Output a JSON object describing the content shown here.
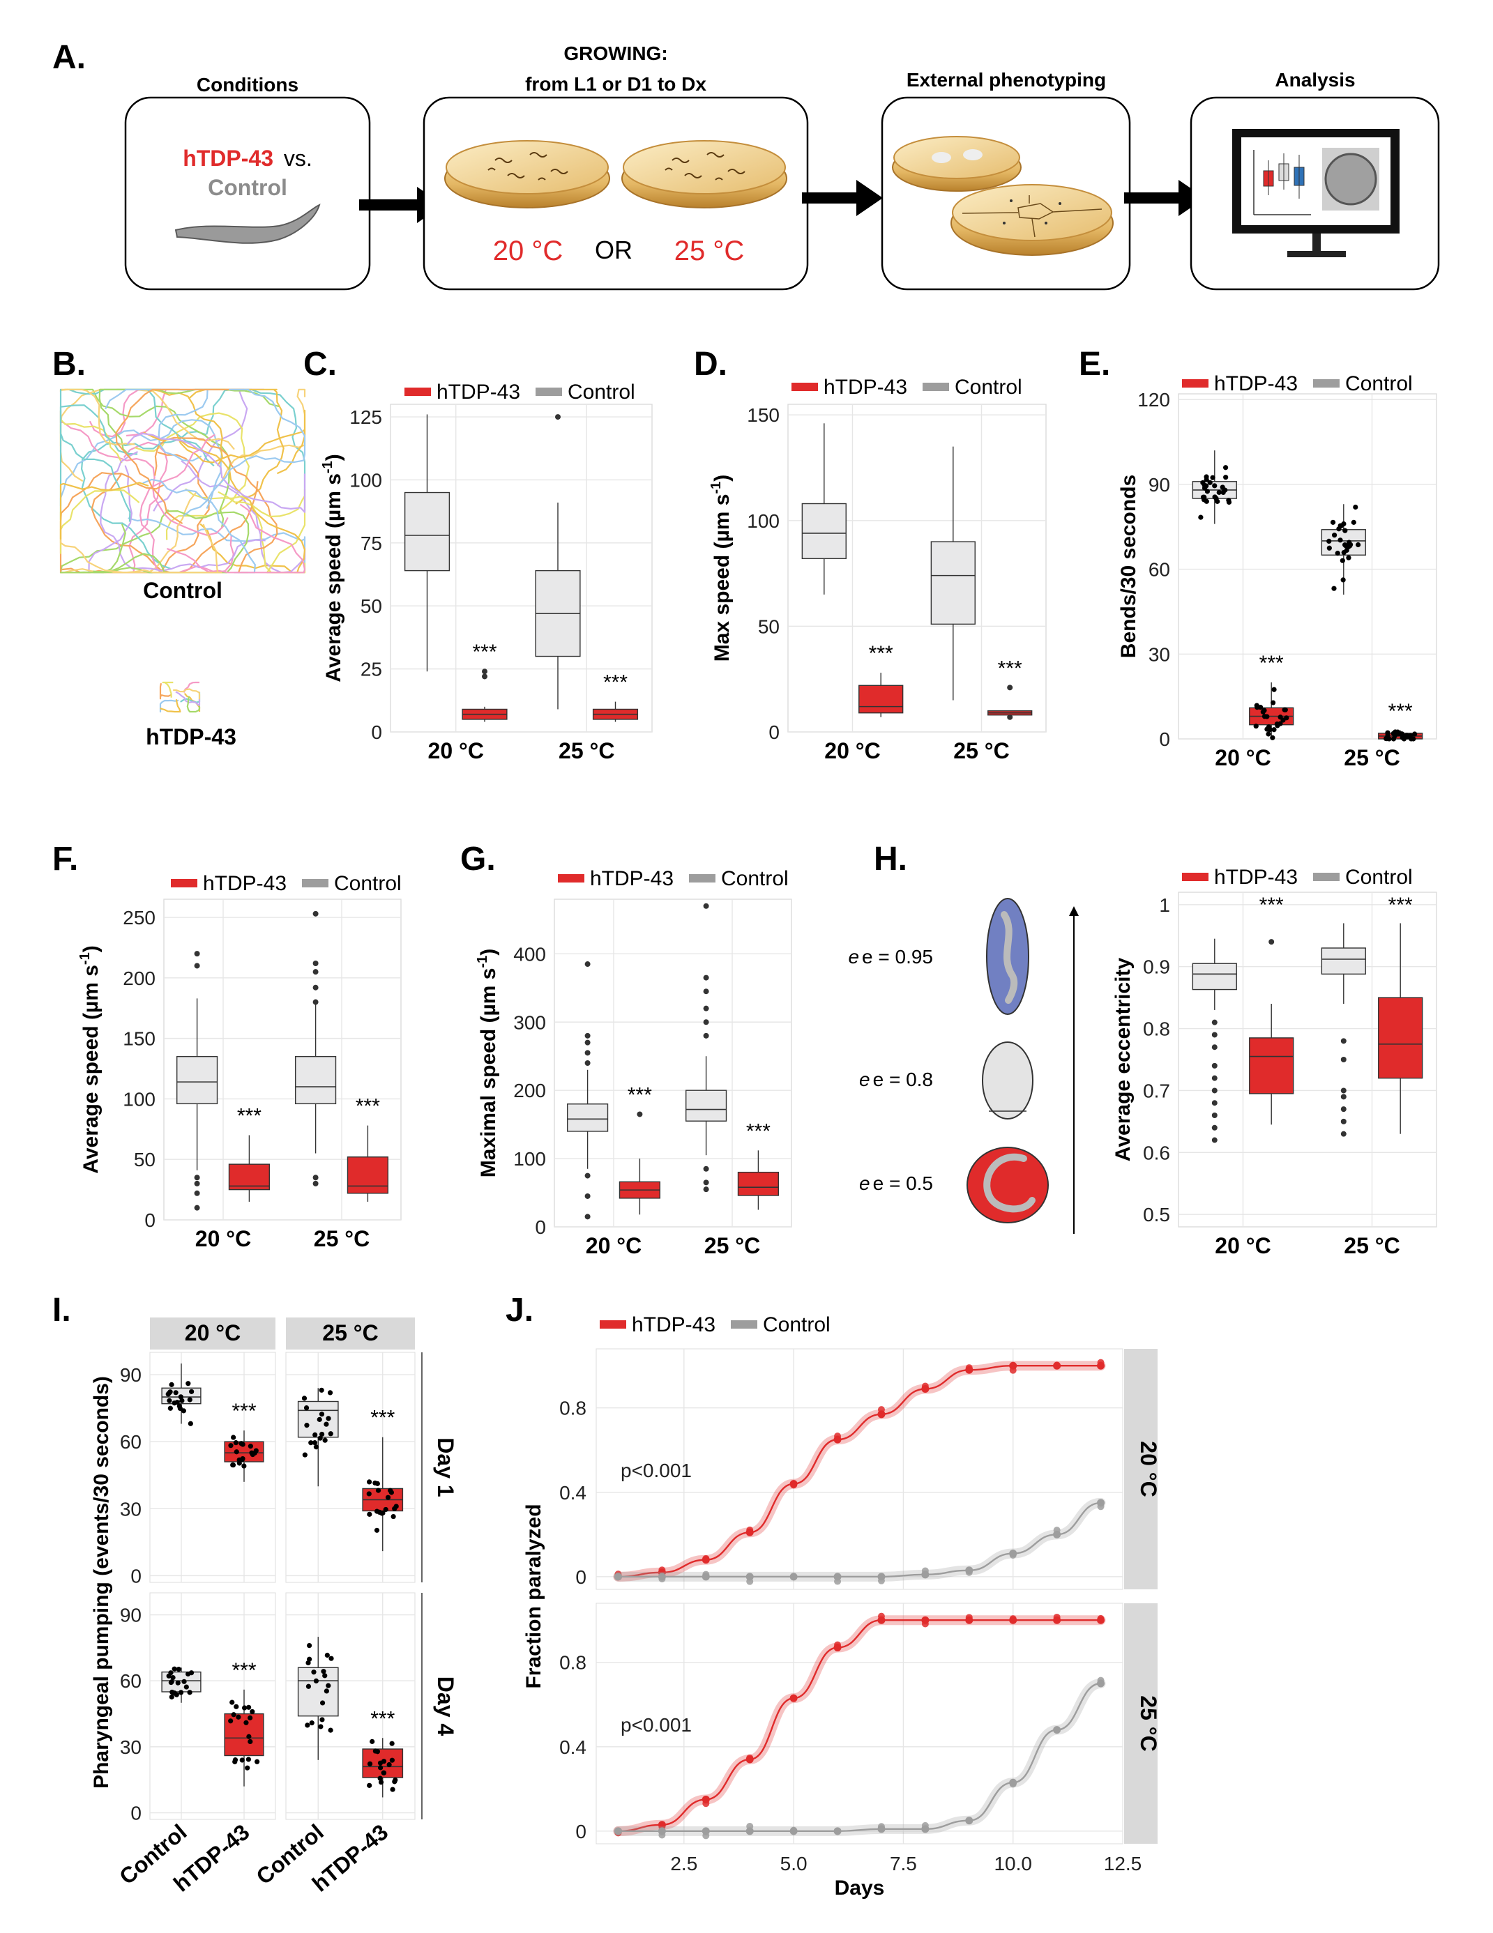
{
  "panels": {
    "A": {
      "label": "A.",
      "boxes": [
        {
          "title": "Conditions"
        },
        {
          "title": "GROWING:",
          "subtitle": "from L1 or D1 to Dx"
        },
        {
          "title": "External phenotyping"
        },
        {
          "title": "Analysis"
        }
      ],
      "strain_red": "hTDP-43",
      "vs_text": "vs.",
      "strain_grey": "Control",
      "temp1": "20 °C",
      "or_text": "OR",
      "temp2": "25 °C"
    },
    "B": {
      "label": "B.",
      "control_label": "Control",
      "htdp_label": "hTDP-43"
    },
    "C": {
      "label": "C."
    },
    "D": {
      "label": "D."
    },
    "E": {
      "label": "E."
    },
    "F": {
      "label": "F."
    },
    "G": {
      "label": "G."
    },
    "H": {
      "label": "H.",
      "ellipse_labels": [
        "e = 0.95",
        "e = 0.8",
        "e = 0.5"
      ],
      "ellipse_e": [
        0.95,
        0.8,
        0.5
      ]
    },
    "I": {
      "label": "I."
    },
    "J": {
      "label": "J."
    }
  },
  "legend": {
    "htdp": "hTDP-43",
    "control": "Control"
  },
  "colors": {
    "htdp": "#e02b2b",
    "control": "#9d9d9d",
    "control_box": "#e8e8e9",
    "ellipse_blue": "#7180c2",
    "strip": "#d9d9d9"
  },
  "chart_data": [
    {
      "id": "C",
      "type": "box",
      "ylabel": "Average speed (µm s⁻¹)",
      "categories": [
        "20 °C",
        "25 °C"
      ],
      "ylim": [
        0,
        130
      ],
      "yticks": [
        0,
        25,
        50,
        75,
        100,
        125
      ],
      "series": [
        {
          "name": "Control",
          "boxes": [
            {
              "q1": 64,
              "median": 78,
              "q3": 95,
              "lo": 24,
              "hi": 126,
              "out": []
            },
            {
              "q1": 30,
              "median": 47,
              "q3": 64,
              "lo": 9,
              "hi": 91,
              "out": [
                125
              ]
            }
          ]
        },
        {
          "name": "hTDP-43",
          "boxes": [
            {
              "q1": 5,
              "median": 7,
              "q3": 9,
              "lo": 4,
              "hi": 10,
              "out": [
                22,
                24
              ]
            },
            {
              "q1": 5,
              "median": 7,
              "q3": 9,
              "lo": 4,
              "hi": 12,
              "out": []
            }
          ]
        }
      ],
      "annotations": [
        "***",
        "***"
      ]
    },
    {
      "id": "D",
      "type": "box",
      "ylabel": "Max speed (µm s⁻¹)",
      "categories": [
        "20 °C",
        "25 °C"
      ],
      "ylim": [
        0,
        155
      ],
      "yticks": [
        0,
        50,
        100,
        150
      ],
      "series": [
        {
          "name": "Control",
          "boxes": [
            {
              "q1": 82,
              "median": 94,
              "q3": 108,
              "lo": 65,
              "hi": 146,
              "out": []
            },
            {
              "q1": 51,
              "median": 74,
              "q3": 90,
              "lo": 15,
              "hi": 135,
              "out": []
            }
          ]
        },
        {
          "name": "hTDP-43",
          "boxes": [
            {
              "q1": 9,
              "median": 12,
              "q3": 22,
              "lo": 7,
              "hi": 28,
              "out": []
            },
            {
              "q1": 8,
              "median": 9,
              "q3": 10,
              "lo": 8,
              "hi": 10,
              "out": [
                7,
                21
              ]
            }
          ]
        }
      ],
      "annotations": [
        "***",
        "***"
      ]
    },
    {
      "id": "E",
      "type": "box",
      "ylabel": "Bends/30 seconds",
      "categories": [
        "20 °C",
        "25 °C"
      ],
      "ylim": [
        0,
        122
      ],
      "yticks": [
        0,
        30,
        60,
        90,
        120
      ],
      "series": [
        {
          "name": "Control",
          "boxes": [
            {
              "q1": 85,
              "median": 88,
              "q3": 91,
              "lo": 76,
              "hi": 102,
              "out": [],
              "jitter": true
            },
            {
              "q1": 65,
              "median": 70,
              "q3": 74,
              "lo": 51,
              "hi": 83,
              "out": [],
              "jitter": true
            }
          ]
        },
        {
          "name": "hTDP-43",
          "boxes": [
            {
              "q1": 5,
              "median": 8,
              "q3": 11,
              "lo": 0,
              "hi": 20,
              "out": [],
              "jitter": true
            },
            {
              "q1": 0,
              "median": 1,
              "q3": 2,
              "lo": 0,
              "hi": 3,
              "out": [],
              "jitter": true
            }
          ]
        }
      ],
      "annotations": [
        "***",
        "***"
      ]
    },
    {
      "id": "F",
      "type": "box",
      "ylabel": "Average speed (µm s⁻¹)",
      "categories": [
        "20 °C",
        "25 °C"
      ],
      "ylim": [
        0,
        265
      ],
      "yticks": [
        0,
        50,
        100,
        150,
        200,
        250
      ],
      "series": [
        {
          "name": "Control",
          "boxes": [
            {
              "q1": 96,
              "median": 114,
              "q3": 135,
              "lo": 41,
              "hi": 183,
              "out": [
                10,
                22,
                30,
                35,
                210,
                220
              ]
            },
            {
              "q1": 96,
              "median": 110,
              "q3": 135,
              "lo": 55,
              "hi": 180,
              "out": [
                30,
                35,
                180,
                192,
                205,
                212,
                253
              ]
            }
          ]
        },
        {
          "name": "hTDP-43",
          "boxes": [
            {
              "q1": 25,
              "median": 28,
              "q3": 46,
              "lo": 15,
              "hi": 70,
              "out": []
            },
            {
              "q1": 22,
              "median": 28,
              "q3": 52,
              "lo": 15,
              "hi": 78,
              "out": []
            }
          ]
        }
      ],
      "annotations": [
        "***",
        "***"
      ]
    },
    {
      "id": "G",
      "type": "box",
      "ylabel": "Maximal speed (µm s⁻¹)",
      "categories": [
        "20 °C",
        "25 °C"
      ],
      "ylim": [
        0,
        480
      ],
      "yticks": [
        0,
        100,
        200,
        300,
        400
      ],
      "series": [
        {
          "name": "Control",
          "boxes": [
            {
              "q1": 140,
              "median": 158,
              "q3": 180,
              "lo": 85,
              "hi": 230,
              "out": [
                15,
                45,
                75,
                240,
                255,
                270,
                280,
                385
              ]
            },
            {
              "q1": 155,
              "median": 172,
              "q3": 200,
              "lo": 105,
              "hi": 250,
              "out": [
                55,
                65,
                85,
                280,
                300,
                320,
                345,
                365,
                470
              ]
            }
          ]
        },
        {
          "name": "hTDP-43",
          "boxes": [
            {
              "q1": 42,
              "median": 54,
              "q3": 66,
              "lo": 18,
              "hi": 100,
              "out": [
                165
              ]
            },
            {
              "q1": 46,
              "median": 58,
              "q3": 80,
              "lo": 25,
              "hi": 112,
              "out": []
            }
          ]
        }
      ],
      "annotations": [
        "***",
        "***"
      ]
    },
    {
      "id": "H",
      "type": "box",
      "ylabel": "Average eccentricity",
      "categories": [
        "20 °C",
        "25 °C"
      ],
      "ylim": [
        0.48,
        1.02
      ],
      "yticks": [
        0.5,
        0.6,
        0.7,
        0.8,
        0.9,
        1.0
      ],
      "series": [
        {
          "name": "Control",
          "boxes": [
            {
              "q1": 0.863,
              "median": 0.888,
              "q3": 0.905,
              "lo": 0.83,
              "hi": 0.945,
              "out": [
                0.62,
                0.64,
                0.66,
                0.68,
                0.7,
                0.72,
                0.74,
                0.77,
                0.79,
                0.81
              ]
            },
            {
              "q1": 0.888,
              "median": 0.912,
              "q3": 0.93,
              "lo": 0.84,
              "hi": 0.97,
              "out": [
                0.63,
                0.65,
                0.67,
                0.69,
                0.7,
                0.75,
                0.78
              ]
            }
          ]
        },
        {
          "name": "hTDP-43",
          "boxes": [
            {
              "q1": 0.695,
              "median": 0.755,
              "q3": 0.785,
              "lo": 0.645,
              "hi": 0.84,
              "out": [
                0.94
              ]
            },
            {
              "q1": 0.72,
              "median": 0.775,
              "q3": 0.85,
              "lo": 0.63,
              "hi": 0.97,
              "out": []
            }
          ]
        }
      ],
      "annotations": [
        "***",
        "***"
      ]
    },
    {
      "id": "I",
      "type": "box",
      "ylabel": "Pharyngeal pumping (events/30 seconds)",
      "facets_col": [
        "20 °C",
        "25 °C"
      ],
      "facets_row": [
        "Day 1",
        "Day 4"
      ],
      "categories": [
        "Control",
        "hTDP-43"
      ],
      "ylim": [
        -3,
        100
      ],
      "yticks": [
        0,
        30,
        60,
        90
      ],
      "panels": [
        {
          "row": 0,
          "col": 0,
          "boxes": [
            {
              "q1": 77,
              "median": 80,
              "q3": 84,
              "lo": 68,
              "hi": 95,
              "jitter": true
            },
            {
              "q1": 51,
              "median": 55,
              "q3": 60,
              "lo": 42,
              "hi": 65,
              "jitter": true
            }
          ]
        },
        {
          "row": 0,
          "col": 1,
          "boxes": [
            {
              "q1": 62,
              "median": 74,
              "q3": 78,
              "lo": 40,
              "hi": 84,
              "jitter": true
            },
            {
              "q1": 29,
              "median": 34,
              "q3": 39,
              "lo": 11,
              "hi": 62,
              "jitter": true
            }
          ]
        },
        {
          "row": 1,
          "col": 0,
          "boxes": [
            {
              "q1": 55,
              "median": 60,
              "q3": 64,
              "lo": 50,
              "hi": 66,
              "jitter": true
            },
            {
              "q1": 26,
              "median": 34,
              "q3": 45,
              "lo": 12,
              "hi": 56,
              "jitter": true
            }
          ]
        },
        {
          "row": 1,
          "col": 1,
          "boxes": [
            {
              "q1": 44,
              "median": 60,
              "q3": 66,
              "lo": 24,
              "hi": 80,
              "jitter": true
            },
            {
              "q1": 16,
              "median": 21,
              "q3": 29,
              "lo": 7,
              "hi": 34,
              "jitter": true
            }
          ]
        }
      ],
      "annotations": [
        "***",
        "***",
        "***",
        "***"
      ]
    },
    {
      "id": "J",
      "type": "line",
      "xlabel": "Days",
      "ylabel": "Fraction paralyzed",
      "xlim": [
        0.5,
        12.5
      ],
      "xticks": [
        2.5,
        5.0,
        7.5,
        10.0,
        12.5
      ],
      "ylim": [
        -0.06,
        1.08
      ],
      "yticks": [
        0,
        0.4,
        0.8
      ],
      "facets_row": [
        "20 °C",
        "25 °C"
      ],
      "panels": [
        {
          "pvalue": "p<0.001",
          "series": [
            {
              "name": "hTDP-43",
              "x": [
                1,
                2,
                3,
                4,
                5,
                6,
                7,
                8,
                9,
                10,
                11,
                12
              ],
              "y": [
                0,
                0.02,
                0.08,
                0.21,
                0.44,
                0.65,
                0.77,
                0.89,
                0.98,
                1.0,
                1.0,
                1.0
              ]
            },
            {
              "name": "Control",
              "x": [
                1,
                2,
                3,
                4,
                5,
                6,
                7,
                8,
                9,
                10,
                11,
                12
              ],
              "y": [
                0,
                0,
                0,
                0,
                0,
                0,
                0,
                0.01,
                0.03,
                0.11,
                0.2,
                0.35
              ]
            }
          ]
        },
        {
          "pvalue": "p<0.001",
          "series": [
            {
              "name": "hTDP-43",
              "x": [
                1,
                2,
                3,
                4,
                5,
                6,
                7,
                8,
                9,
                10,
                11,
                12
              ],
              "y": [
                0,
                0.03,
                0.15,
                0.34,
                0.63,
                0.87,
                1.0,
                1.0,
                1.0,
                1.0,
                1.0,
                1.0
              ]
            },
            {
              "name": "Control",
              "x": [
                1,
                2,
                3,
                4,
                5,
                6,
                7,
                8,
                9,
                10,
                11,
                12
              ],
              "y": [
                0,
                0,
                0,
                0,
                0,
                0,
                0.01,
                0.01,
                0.05,
                0.23,
                0.48,
                0.7
              ]
            }
          ]
        }
      ]
    }
  ]
}
